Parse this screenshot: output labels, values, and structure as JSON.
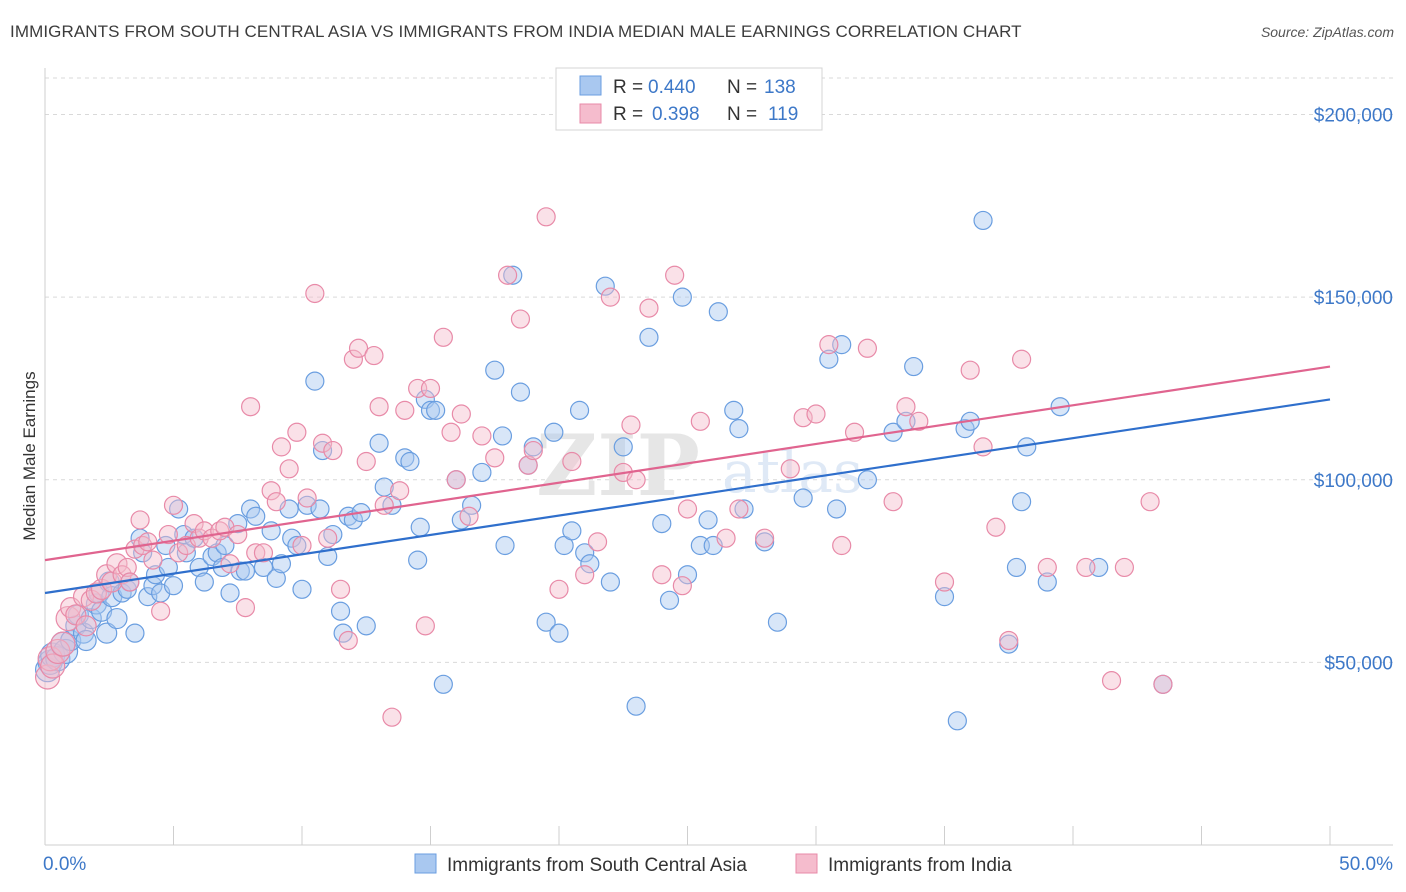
{
  "title": "IMMIGRANTS FROM SOUTH CENTRAL ASIA VS IMMIGRANTS FROM INDIA MEDIAN MALE EARNINGS CORRELATION CHART",
  "source": "Source: ZipAtlas.com",
  "watermark": {
    "zip": "ZIP",
    "atlas": "atlas"
  },
  "colors": {
    "blue": "#6a9ee0",
    "blue_fill": "#a9c8f0",
    "blue_line": "#2f6fcc",
    "pink": "#e88aa8",
    "pink_fill": "#f5bccd",
    "pink_line": "#e0648f",
    "tick_text": "#3d78c8",
    "grid": "#d9d9d9"
  },
  "legend_top": {
    "rows": [
      {
        "r_label": "R =",
        "r_value": "0.440",
        "n_label": "N =",
        "n_value": "138"
      },
      {
        "r_label": "R =",
        "r_value": "0.398",
        "n_label": "N =",
        "n_value": "119"
      }
    ]
  },
  "chart_data": {
    "type": "scatter",
    "title": "IMMIGRANTS FROM SOUTH CENTRAL ASIA VS IMMIGRANTS FROM INDIA MEDIAN MALE EARNINGS CORRELATION CHART",
    "xlabel": "",
    "ylabel": "Median Male Earnings",
    "xlim": [
      0,
      50
    ],
    "ylim": [
      0,
      210000
    ],
    "x_tick_labels": [
      "0.0%",
      "50.0%"
    ],
    "y_ticks": [
      50000,
      100000,
      150000,
      200000
    ],
    "y_tick_labels": [
      "$50,000",
      "$100,000",
      "$150,000",
      "$200,000"
    ],
    "grid": true,
    "legend_position": "bottom-center",
    "series": [
      {
        "name": "Immigrants from South Central Asia",
        "r": 0.44,
        "n": 138,
        "trend": {
          "x": [
            0,
            50
          ],
          "y": [
            69000,
            122000
          ]
        },
        "points": [
          [
            0.1,
            48000
          ],
          [
            0.2,
            50000
          ],
          [
            0.3,
            52000
          ],
          [
            0.5,
            51000
          ],
          [
            0.7,
            55000
          ],
          [
            0.8,
            53000
          ],
          [
            1.0,
            56000
          ],
          [
            1.2,
            60000
          ],
          [
            1.3,
            63000
          ],
          [
            1.5,
            58000
          ],
          [
            1.6,
            56000
          ],
          [
            1.8,
            62000
          ],
          [
            2.0,
            66000
          ],
          [
            2.1,
            69000
          ],
          [
            2.2,
            64000
          ],
          [
            2.4,
            58000
          ],
          [
            2.5,
            72000
          ],
          [
            2.6,
            68000
          ],
          [
            2.8,
            62000
          ],
          [
            3.0,
            69000
          ],
          [
            3.2,
            70000
          ],
          [
            3.3,
            72000
          ],
          [
            3.5,
            58000
          ],
          [
            3.7,
            84000
          ],
          [
            3.8,
            80000
          ],
          [
            4.0,
            68000
          ],
          [
            4.2,
            71000
          ],
          [
            4.3,
            74000
          ],
          [
            4.5,
            69000
          ],
          [
            4.7,
            82000
          ],
          [
            4.8,
            76000
          ],
          [
            5.0,
            71000
          ],
          [
            5.2,
            92000
          ],
          [
            5.4,
            85000
          ],
          [
            5.5,
            80000
          ],
          [
            5.8,
            84000
          ],
          [
            6.0,
            76000
          ],
          [
            6.2,
            72000
          ],
          [
            6.5,
            79000
          ],
          [
            6.7,
            80000
          ],
          [
            6.9,
            76000
          ],
          [
            7.0,
            82000
          ],
          [
            7.2,
            69000
          ],
          [
            7.5,
            88000
          ],
          [
            7.6,
            75000
          ],
          [
            7.8,
            75000
          ],
          [
            8.0,
            92000
          ],
          [
            8.2,
            90000
          ],
          [
            8.5,
            76000
          ],
          [
            8.8,
            86000
          ],
          [
            9.0,
            73000
          ],
          [
            9.2,
            77000
          ],
          [
            9.5,
            92000
          ],
          [
            9.6,
            84000
          ],
          [
            9.8,
            82000
          ],
          [
            10.0,
            70000
          ],
          [
            10.2,
            93000
          ],
          [
            10.5,
            127000
          ],
          [
            10.7,
            92000
          ],
          [
            10.8,
            108000
          ],
          [
            11.0,
            79000
          ],
          [
            11.2,
            85000
          ],
          [
            11.5,
            64000
          ],
          [
            11.6,
            58000
          ],
          [
            11.8,
            90000
          ],
          [
            12.0,
            89000
          ],
          [
            12.3,
            91000
          ],
          [
            12.5,
            60000
          ],
          [
            13.0,
            110000
          ],
          [
            13.2,
            98000
          ],
          [
            13.5,
            93000
          ],
          [
            14.0,
            106000
          ],
          [
            14.2,
            105000
          ],
          [
            14.5,
            78000
          ],
          [
            14.6,
            87000
          ],
          [
            14.8,
            122000
          ],
          [
            15.0,
            119000
          ],
          [
            15.2,
            119000
          ],
          [
            15.5,
            44000
          ],
          [
            16.0,
            100000
          ],
          [
            16.2,
            89000
          ],
          [
            16.6,
            93000
          ],
          [
            17.0,
            102000
          ],
          [
            17.5,
            130000
          ],
          [
            17.8,
            112000
          ],
          [
            17.9,
            82000
          ],
          [
            18.2,
            156000
          ],
          [
            18.5,
            124000
          ],
          [
            18.8,
            104000
          ],
          [
            19.0,
            109000
          ],
          [
            19.5,
            61000
          ],
          [
            19.8,
            113000
          ],
          [
            20.0,
            58000
          ],
          [
            20.2,
            82000
          ],
          [
            20.5,
            86000
          ],
          [
            20.8,
            119000
          ],
          [
            21.0,
            80000
          ],
          [
            21.2,
            77000
          ],
          [
            21.8,
            153000
          ],
          [
            22.0,
            72000
          ],
          [
            22.5,
            109000
          ],
          [
            23.0,
            38000
          ],
          [
            23.5,
            139000
          ],
          [
            24.0,
            88000
          ],
          [
            24.3,
            67000
          ],
          [
            24.8,
            150000
          ],
          [
            25.0,
            74000
          ],
          [
            25.5,
            82000
          ],
          [
            25.8,
            89000
          ],
          [
            26.0,
            82000
          ],
          [
            26.2,
            146000
          ],
          [
            26.8,
            119000
          ],
          [
            27.0,
            114000
          ],
          [
            27.2,
            92000
          ],
          [
            28.0,
            83000
          ],
          [
            28.5,
            61000
          ],
          [
            29.5,
            95000
          ],
          [
            30.5,
            133000
          ],
          [
            30.8,
            92000
          ],
          [
            31.0,
            137000
          ],
          [
            32.0,
            100000
          ],
          [
            33.0,
            113000
          ],
          [
            33.5,
            116000
          ],
          [
            33.8,
            131000
          ],
          [
            35.0,
            68000
          ],
          [
            35.5,
            34000
          ],
          [
            35.8,
            114000
          ],
          [
            36.0,
            116000
          ],
          [
            36.5,
            171000
          ],
          [
            37.5,
            55000
          ],
          [
            37.8,
            76000
          ],
          [
            38.0,
            94000
          ],
          [
            38.2,
            109000
          ],
          [
            39.0,
            72000
          ],
          [
            39.5,
            120000
          ],
          [
            41.0,
            76000
          ],
          [
            43.5,
            44000
          ]
        ]
      },
      {
        "name": "Immigrants from India",
        "r": 0.398,
        "n": 119,
        "trend": {
          "x": [
            0,
            50
          ],
          "y": [
            78000,
            131000
          ]
        },
        "points": [
          [
            0.1,
            46000
          ],
          [
            0.2,
            51000
          ],
          [
            0.3,
            49000
          ],
          [
            0.5,
            53000
          ],
          [
            0.7,
            55000
          ],
          [
            0.9,
            62000
          ],
          [
            1.0,
            65000
          ],
          [
            1.2,
            63000
          ],
          [
            1.5,
            68000
          ],
          [
            1.6,
            60000
          ],
          [
            1.8,
            67000
          ],
          [
            2.0,
            69000
          ],
          [
            2.2,
            70000
          ],
          [
            2.4,
            74000
          ],
          [
            2.6,
            72000
          ],
          [
            2.8,
            77000
          ],
          [
            3.0,
            74000
          ],
          [
            3.2,
            76000
          ],
          [
            3.3,
            72000
          ],
          [
            3.5,
            81000
          ],
          [
            3.7,
            89000
          ],
          [
            3.8,
            82000
          ],
          [
            4.0,
            83000
          ],
          [
            4.2,
            78000
          ],
          [
            4.5,
            64000
          ],
          [
            4.8,
            85000
          ],
          [
            5.0,
            93000
          ],
          [
            5.2,
            80000
          ],
          [
            5.5,
            82000
          ],
          [
            5.8,
            88000
          ],
          [
            6.0,
            84000
          ],
          [
            6.2,
            86000
          ],
          [
            6.5,
            84000
          ],
          [
            6.8,
            86000
          ],
          [
            7.0,
            87000
          ],
          [
            7.2,
            77000
          ],
          [
            7.5,
            85000
          ],
          [
            7.8,
            65000
          ],
          [
            8.0,
            120000
          ],
          [
            8.2,
            80000
          ],
          [
            8.5,
            80000
          ],
          [
            8.8,
            97000
          ],
          [
            9.0,
            94000
          ],
          [
            9.2,
            109000
          ],
          [
            9.5,
            103000
          ],
          [
            9.8,
            113000
          ],
          [
            10.0,
            82000
          ],
          [
            10.2,
            95000
          ],
          [
            10.5,
            151000
          ],
          [
            10.8,
            110000
          ],
          [
            11.0,
            84000
          ],
          [
            11.2,
            108000
          ],
          [
            11.5,
            70000
          ],
          [
            11.8,
            56000
          ],
          [
            12.0,
            133000
          ],
          [
            12.2,
            136000
          ],
          [
            12.5,
            105000
          ],
          [
            12.8,
            134000
          ],
          [
            13.0,
            120000
          ],
          [
            13.2,
            93000
          ],
          [
            13.5,
            35000
          ],
          [
            13.8,
            97000
          ],
          [
            14.0,
            119000
          ],
          [
            14.5,
            125000
          ],
          [
            14.8,
            60000
          ],
          [
            15.0,
            125000
          ],
          [
            15.5,
            139000
          ],
          [
            15.8,
            113000
          ],
          [
            16.0,
            100000
          ],
          [
            16.2,
            118000
          ],
          [
            16.5,
            90000
          ],
          [
            17.0,
            112000
          ],
          [
            17.5,
            106000
          ],
          [
            18.0,
            156000
          ],
          [
            18.5,
            144000
          ],
          [
            18.8,
            104000
          ],
          [
            19.0,
            108000
          ],
          [
            19.5,
            172000
          ],
          [
            20.0,
            70000
          ],
          [
            20.5,
            105000
          ],
          [
            21.0,
            74000
          ],
          [
            21.5,
            83000
          ],
          [
            22.0,
            150000
          ],
          [
            22.5,
            102000
          ],
          [
            22.8,
            115000
          ],
          [
            23.0,
            100000
          ],
          [
            23.5,
            147000
          ],
          [
            24.0,
            74000
          ],
          [
            24.5,
            156000
          ],
          [
            24.8,
            71000
          ],
          [
            25.0,
            92000
          ],
          [
            25.5,
            116000
          ],
          [
            26.5,
            84000
          ],
          [
            27.0,
            92000
          ],
          [
            28.0,
            84000
          ],
          [
            29.0,
            103000
          ],
          [
            29.5,
            117000
          ],
          [
            30.0,
            118000
          ],
          [
            30.5,
            137000
          ],
          [
            31.0,
            82000
          ],
          [
            31.5,
            113000
          ],
          [
            32.0,
            136000
          ],
          [
            33.0,
            94000
          ],
          [
            33.5,
            120000
          ],
          [
            34.0,
            116000
          ],
          [
            35.0,
            72000
          ],
          [
            36.0,
            130000
          ],
          [
            36.5,
            109000
          ],
          [
            37.0,
            87000
          ],
          [
            37.5,
            56000
          ],
          [
            38.0,
            133000
          ],
          [
            39.0,
            76000
          ],
          [
            40.5,
            76000
          ],
          [
            41.5,
            45000
          ],
          [
            42.0,
            76000
          ],
          [
            43.0,
            94000
          ],
          [
            43.5,
            44000
          ]
        ]
      }
    ]
  }
}
